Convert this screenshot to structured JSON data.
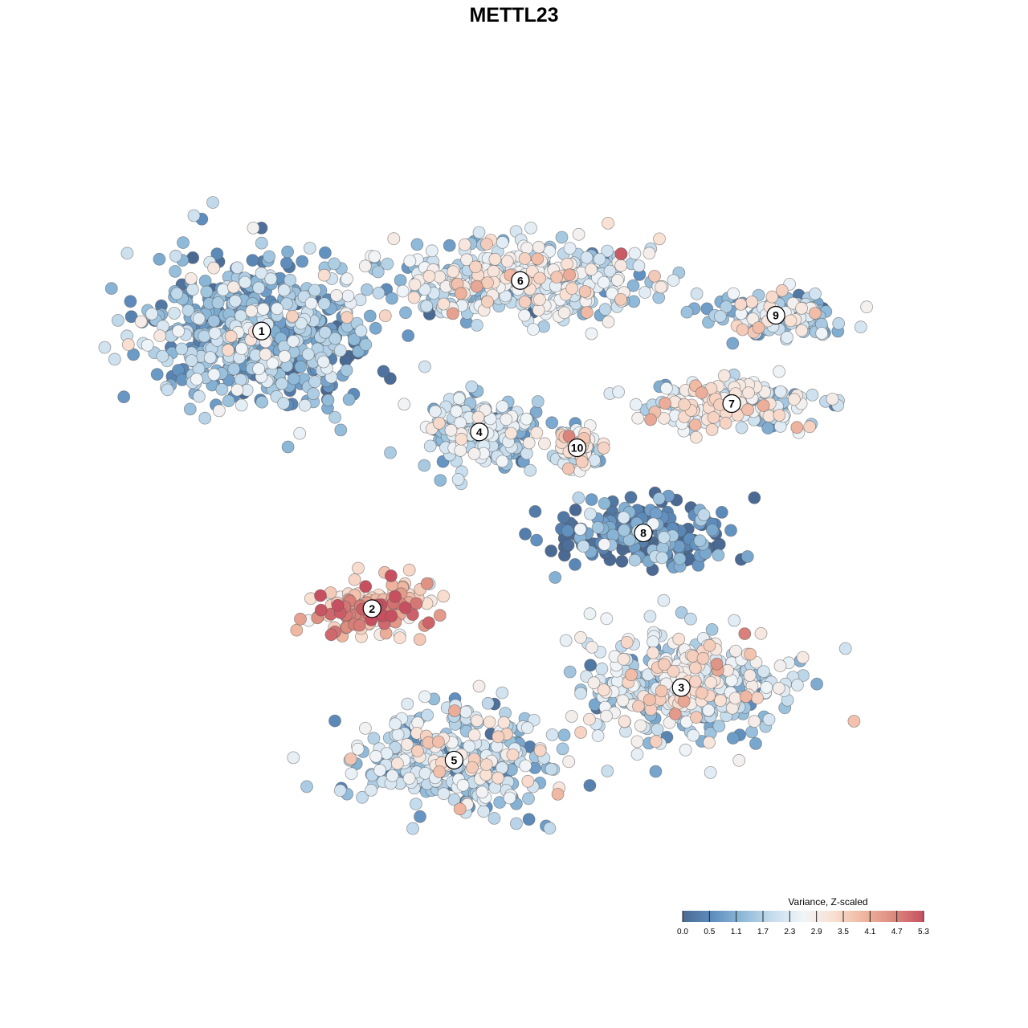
{
  "chart_data": {
    "type": "scatter",
    "title": "METTL23",
    "xlabel": "",
    "ylabel": "",
    "grid": false,
    "legend": {
      "title": "Variance, Z-scaled",
      "placement": "bottom-right",
      "range": [
        0.0,
        5.3
      ],
      "ticks": [
        "0.0",
        "0.5",
        "1.1",
        "1.7",
        "2.3",
        "2.9",
        "3.5",
        "4.1",
        "4.7",
        "5.3"
      ],
      "colorscale": [
        "#4a6a94",
        "#5f8fbf",
        "#8fbad9",
        "#c7dded",
        "#f1f5f8",
        "#f9e0d3",
        "#efb6a0",
        "#dc8a7e",
        "#c65060"
      ]
    },
    "clusters": [
      {
        "label": "1",
        "x": -8.0,
        "y": 5.8,
        "spread": [
          3.2,
          2.3
        ],
        "value": 1.3
      },
      {
        "label": "2",
        "x": -4.5,
        "y": -3.0,
        "spread": [
          1.6,
          0.8
        ],
        "value": 3.9
      },
      {
        "label": "3",
        "x": 5.3,
        "y": -5.5,
        "spread": [
          3.0,
          1.6
        ],
        "value": 2.3
      },
      {
        "label": "4",
        "x": -1.1,
        "y": 2.6,
        "spread": [
          1.6,
          1.2
        ],
        "value": 1.7
      },
      {
        "label": "5",
        "x": -1.9,
        "y": -7.8,
        "spread": [
          2.8,
          1.5
        ],
        "value": 1.9
      },
      {
        "label": "6",
        "x": 0.2,
        "y": 7.4,
        "spread": [
          4.0,
          1.1
        ],
        "value": 2.2
      },
      {
        "label": "7",
        "x": 6.9,
        "y": 3.5,
        "spread": [
          2.5,
          0.7
        ],
        "value": 2.4
      },
      {
        "label": "8",
        "x": 4.1,
        "y": -0.6,
        "spread": [
          2.5,
          0.9
        ],
        "value": 0.5
      },
      {
        "label": "9",
        "x": 8.3,
        "y": 6.3,
        "spread": [
          1.9,
          0.6
        ],
        "value": 2.0
      },
      {
        "label": "10",
        "x": 2.0,
        "y": 2.1,
        "spread": [
          0.6,
          0.6
        ],
        "value": 2.5
      }
    ],
    "xlim": [
      -14,
      14
    ],
    "ylim": [
      -14,
      14
    ]
  }
}
